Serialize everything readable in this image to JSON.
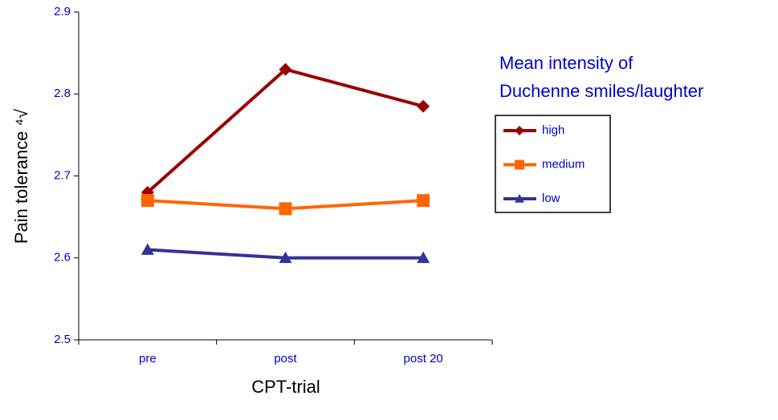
{
  "chart_data": {
    "type": "line",
    "x_label": "CPT-trial",
    "y_label": "Pain tolerance ⁴√",
    "legend_title": [
      "Mean intensity of",
      "Duchenne smiles/laughter"
    ],
    "legend_position": "right",
    "categories": [
      "pre",
      "post",
      "post 20"
    ],
    "series": [
      {
        "name": "high",
        "color": "#990000",
        "marker": "diamond",
        "values": [
          2.68,
          2.83,
          2.785
        ]
      },
      {
        "name": "medium",
        "color": "#ff6600",
        "marker": "square",
        "values": [
          2.67,
          2.66,
          2.67
        ]
      },
      {
        "name": "low",
        "color": "#333399",
        "marker": "triangle",
        "values": [
          2.61,
          2.6,
          2.6
        ]
      }
    ],
    "ylim": [
      2.5,
      2.9
    ],
    "yticks": [
      2.5,
      2.6,
      2.7,
      2.8,
      2.9
    ]
  }
}
